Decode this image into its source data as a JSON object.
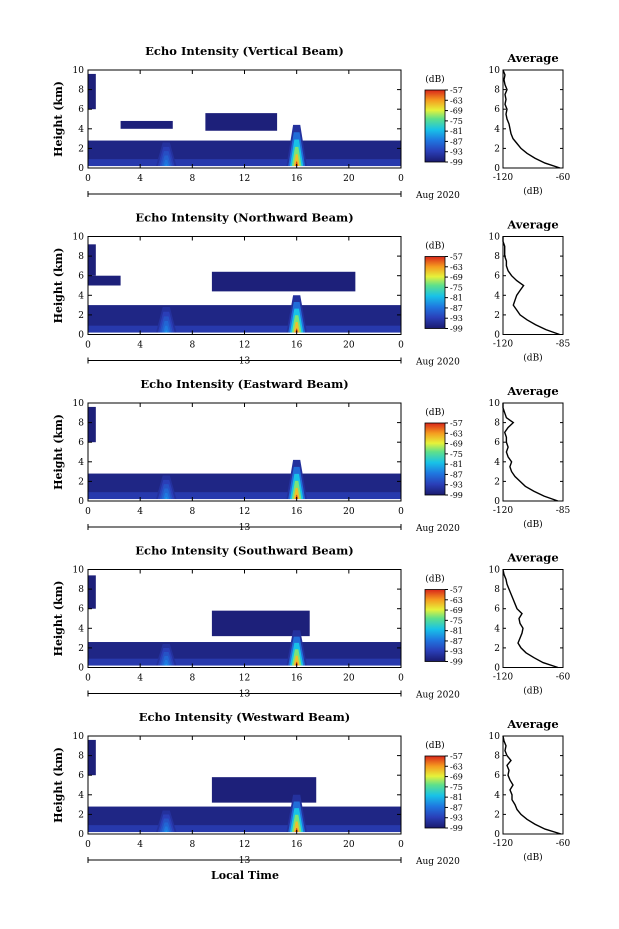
{
  "figure": {
    "xlabel": "Local Time",
    "date_label": "Aug 2020"
  },
  "chart_data": [
    {
      "type": "heatmap",
      "title": "Echo Intensity (Vertical Beam)",
      "xlabel": "",
      "ylabel": "Height (km)",
      "x_ticks": [
        "0",
        "4",
        "8",
        "12",
        "16",
        "20",
        "0"
      ],
      "x_range_hours": [
        0,
        24
      ],
      "day_marker_label": "",
      "y_ticks": [
        "0",
        "2",
        "4",
        "6",
        "8",
        "10"
      ],
      "ylim": [
        0,
        10
      ],
      "colorbar": {
        "label": "(dB)",
        "ticks": [
          "-57",
          "-63",
          "-69",
          "-75",
          "-81",
          "-87",
          "-93",
          "-99"
        ],
        "range": [
          -99,
          -57
        ]
      },
      "layers": [
        {
          "start_h": 0,
          "end_h": 24,
          "base_km": 0.2,
          "top_km": 2.8,
          "intensity_db": -97
        },
        {
          "start_h": 9.0,
          "end_h": 14.5,
          "base_km": 3.8,
          "top_km": 5.6,
          "intensity_db": -98
        },
        {
          "start_h": 2.5,
          "end_h": 6.5,
          "base_km": 4.0,
          "top_km": 4.8,
          "intensity_db": -98
        },
        {
          "start_h": 0.0,
          "end_h": 0.6,
          "base_km": 6.0,
          "top_km": 9.6,
          "intensity_db": -98
        }
      ],
      "plumes": [
        {
          "hour": 6.0,
          "top_km": 2.6,
          "peak_db": -85
        },
        {
          "hour": 16.0,
          "top_km": 4.4,
          "peak_db": -58
        }
      ],
      "average_profile": {
        "title": "Average",
        "xlabel": "(dB)",
        "x_ticks": [
          "-120",
          "-60"
        ],
        "xlim": [
          -120,
          -60
        ],
        "ylim": [
          0,
          10
        ],
        "y_ticks": [
          "0",
          "2",
          "4",
          "6",
          "8",
          "10"
        ],
        "height_km": [
          0,
          0.5,
          1,
          1.5,
          2,
          2.5,
          3,
          3.5,
          4,
          4.5,
          5,
          5.5,
          6,
          6.5,
          7,
          7.5,
          8,
          8.5,
          9,
          9.5,
          10
        ],
        "value_db": [
          -63,
          -78,
          -88,
          -96,
          -102,
          -106,
          -110,
          -112,
          -113,
          -114,
          -116,
          -117,
          -116,
          -118,
          -117,
          -118,
          -116,
          -118,
          -119,
          -118,
          -120
        ]
      }
    },
    {
      "type": "heatmap",
      "title": "Echo Intensity (Northward Beam)",
      "xlabel": "",
      "ylabel": "Height (km)",
      "x_ticks": [
        "0",
        "4",
        "8",
        "12",
        "16",
        "20",
        "0"
      ],
      "x_range_hours": [
        0,
        24
      ],
      "day_marker_label": "13",
      "y_ticks": [
        "0",
        "2",
        "4",
        "6",
        "8",
        "10"
      ],
      "ylim": [
        0,
        10
      ],
      "colorbar": {
        "label": "(dB)",
        "ticks": [
          "-57",
          "-63",
          "-69",
          "-75",
          "-81",
          "-87",
          "-93",
          "-99"
        ],
        "range": [
          -99,
          -57
        ]
      },
      "layers": [
        {
          "start_h": 0,
          "end_h": 24,
          "base_km": 0.2,
          "top_km": 3.0,
          "intensity_db": -97
        },
        {
          "start_h": 9.5,
          "end_h": 20.5,
          "base_km": 4.4,
          "top_km": 6.4,
          "intensity_db": -98
        },
        {
          "start_h": 0.0,
          "end_h": 2.5,
          "base_km": 5.0,
          "top_km": 6.0,
          "intensity_db": -98
        },
        {
          "start_h": 0.0,
          "end_h": 0.6,
          "base_km": 6.0,
          "top_km": 9.2,
          "intensity_db": -98
        }
      ],
      "plumes": [
        {
          "hour": 6.0,
          "top_km": 2.8,
          "peak_db": -84
        },
        {
          "hour": 16.0,
          "top_km": 4.0,
          "peak_db": -58
        }
      ],
      "average_profile": {
        "title": "Average",
        "xlabel": "(dB)",
        "x_ticks": [
          "-120",
          "-85"
        ],
        "xlim": [
          -120,
          -85
        ],
        "ylim": [
          0,
          10
        ],
        "y_ticks": [
          "0",
          "2",
          "4",
          "6",
          "8",
          "10"
        ],
        "height_km": [
          0,
          0.5,
          1,
          1.5,
          2,
          2.5,
          3,
          3.5,
          4,
          4.5,
          5,
          5.5,
          6,
          6.5,
          7,
          7.5,
          8,
          8.5,
          9,
          9.5,
          10
        ],
        "value_db": [
          -87,
          -95,
          -101,
          -106,
          -110,
          -112,
          -114,
          -113,
          -112,
          -110,
          -108,
          -112,
          -115,
          -117,
          -118,
          -118,
          -119,
          -119,
          -119,
          -120,
          -120
        ]
      }
    },
    {
      "type": "heatmap",
      "title": "Echo Intensity (Eastward Beam)",
      "xlabel": "",
      "ylabel": "Height (km)",
      "x_ticks": [
        "0",
        "4",
        "8",
        "12",
        "16",
        "20",
        "0"
      ],
      "x_range_hours": [
        0,
        24
      ],
      "day_marker_label": "13",
      "y_ticks": [
        "0",
        "2",
        "4",
        "6",
        "8",
        "10"
      ],
      "ylim": [
        0,
        10
      ],
      "colorbar": {
        "label": "(dB)",
        "ticks": [
          "-57",
          "-63",
          "-69",
          "-75",
          "-81",
          "-87",
          "-93",
          "-99"
        ],
        "range": [
          -99,
          -57
        ]
      },
      "layers": [
        {
          "start_h": 0,
          "end_h": 24,
          "base_km": 0.2,
          "top_km": 2.8,
          "intensity_db": -97
        },
        {
          "start_h": 0.0,
          "end_h": 0.6,
          "base_km": 6.0,
          "top_km": 9.6,
          "intensity_db": -98
        }
      ],
      "plumes": [
        {
          "hour": 6.0,
          "top_km": 2.6,
          "peak_db": -84
        },
        {
          "hour": 16.0,
          "top_km": 4.2,
          "peak_db": -58
        }
      ],
      "average_profile": {
        "title": "Average",
        "xlabel": "(dB)",
        "x_ticks": [
          "-120",
          "-85"
        ],
        "xlim": [
          -120,
          -85
        ],
        "ylim": [
          0,
          10
        ],
        "y_ticks": [
          "0",
          "2",
          "4",
          "6",
          "8",
          "10"
        ],
        "height_km": [
          0,
          0.5,
          1,
          1.5,
          2,
          2.5,
          3,
          3.5,
          4,
          4.5,
          5,
          5.5,
          6,
          6.5,
          7,
          7.5,
          8,
          8.5,
          9,
          9.5,
          10
        ],
        "value_db": [
          -88,
          -96,
          -102,
          -107,
          -110,
          -113,
          -115,
          -116,
          -115,
          -117,
          -118,
          -117,
          -118,
          -118,
          -119,
          -117,
          -114,
          -118,
          -119,
          -120,
          -120
        ]
      }
    },
    {
      "type": "heatmap",
      "title": "Echo Intensity (Southward Beam)",
      "xlabel": "",
      "ylabel": "Height (km)",
      "x_ticks": [
        "0",
        "4",
        "8",
        "12",
        "16",
        "20",
        "0"
      ],
      "x_range_hours": [
        0,
        24
      ],
      "day_marker_label": "13",
      "y_ticks": [
        "0",
        "2",
        "4",
        "6",
        "8",
        "10"
      ],
      "ylim": [
        0,
        10
      ],
      "colorbar": {
        "label": "(dB)",
        "ticks": [
          "-57",
          "-63",
          "-69",
          "-75",
          "-81",
          "-87",
          "-93",
          "-99"
        ],
        "range": [
          -99,
          -57
        ]
      },
      "layers": [
        {
          "start_h": 0,
          "end_h": 24,
          "base_km": 0.2,
          "top_km": 2.6,
          "intensity_db": -97
        },
        {
          "start_h": 9.5,
          "end_h": 17.0,
          "base_km": 3.2,
          "top_km": 5.8,
          "intensity_db": -98
        },
        {
          "start_h": 0.0,
          "end_h": 0.6,
          "base_km": 6.0,
          "top_km": 9.4,
          "intensity_db": -98
        }
      ],
      "plumes": [
        {
          "hour": 6.0,
          "top_km": 2.4,
          "peak_db": -84
        },
        {
          "hour": 16.0,
          "top_km": 3.8,
          "peak_db": -58
        }
      ],
      "average_profile": {
        "title": "Average",
        "xlabel": "(dB)",
        "x_ticks": [
          "-120",
          "-60"
        ],
        "xlim": [
          -120,
          -60
        ],
        "ylim": [
          0,
          10
        ],
        "y_ticks": [
          "0",
          "2",
          "4",
          "6",
          "8",
          "10"
        ],
        "height_km": [
          0,
          0.5,
          1,
          1.5,
          2,
          2.5,
          3,
          3.5,
          4,
          4.5,
          5,
          5.5,
          6,
          6.5,
          7,
          7.5,
          8,
          8.5,
          9,
          9.5,
          10
        ],
        "value_db": [
          -65,
          -80,
          -89,
          -97,
          -102,
          -105,
          -103,
          -101,
          -100,
          -103,
          -104,
          -101,
          -106,
          -108,
          -110,
          -112,
          -114,
          -116,
          -117,
          -119,
          -120
        ]
      }
    },
    {
      "type": "heatmap",
      "title": "Echo Intensity (Westward Beam)",
      "xlabel": "Local Time",
      "ylabel": "Height (km)",
      "x_ticks": [
        "0",
        "4",
        "8",
        "12",
        "16",
        "20",
        "0"
      ],
      "x_range_hours": [
        0,
        24
      ],
      "day_marker_label": "13",
      "y_ticks": [
        "0",
        "2",
        "4",
        "6",
        "8",
        "10"
      ],
      "ylim": [
        0,
        10
      ],
      "colorbar": {
        "label": "(dB)",
        "ticks": [
          "-57",
          "-63",
          "-69",
          "-75",
          "-81",
          "-87",
          "-93",
          "-99"
        ],
        "range": [
          -99,
          -57
        ]
      },
      "layers": [
        {
          "start_h": 0,
          "end_h": 24,
          "base_km": 0.2,
          "top_km": 2.8,
          "intensity_db": -97
        },
        {
          "start_h": 9.5,
          "end_h": 17.5,
          "base_km": 3.2,
          "top_km": 5.8,
          "intensity_db": -98
        },
        {
          "start_h": 0.0,
          "end_h": 0.6,
          "base_km": 6.0,
          "top_km": 9.6,
          "intensity_db": -98
        }
      ],
      "plumes": [
        {
          "hour": 6.0,
          "top_km": 2.4,
          "peak_db": -84
        },
        {
          "hour": 16.0,
          "top_km": 4.0,
          "peak_db": -58
        }
      ],
      "average_profile": {
        "title": "Average",
        "xlabel": "(dB)",
        "x_ticks": [
          "-120",
          "-60"
        ],
        "xlim": [
          -120,
          -60
        ],
        "ylim": [
          0,
          10
        ],
        "y_ticks": [
          "0",
          "2",
          "4",
          "6",
          "8",
          "10"
        ],
        "height_km": [
          0,
          0.5,
          1,
          1.5,
          2,
          2.5,
          3,
          3.5,
          4,
          4.5,
          5,
          5.5,
          6,
          6.5,
          7,
          7.5,
          8,
          8.5,
          9,
          9.5,
          10
        ],
        "value_db": [
          -62,
          -78,
          -88,
          -96,
          -102,
          -106,
          -108,
          -111,
          -111,
          -113,
          -110,
          -113,
          -115,
          -114,
          -116,
          -112,
          -116,
          -118,
          -117,
          -119,
          -120
        ]
      }
    }
  ]
}
